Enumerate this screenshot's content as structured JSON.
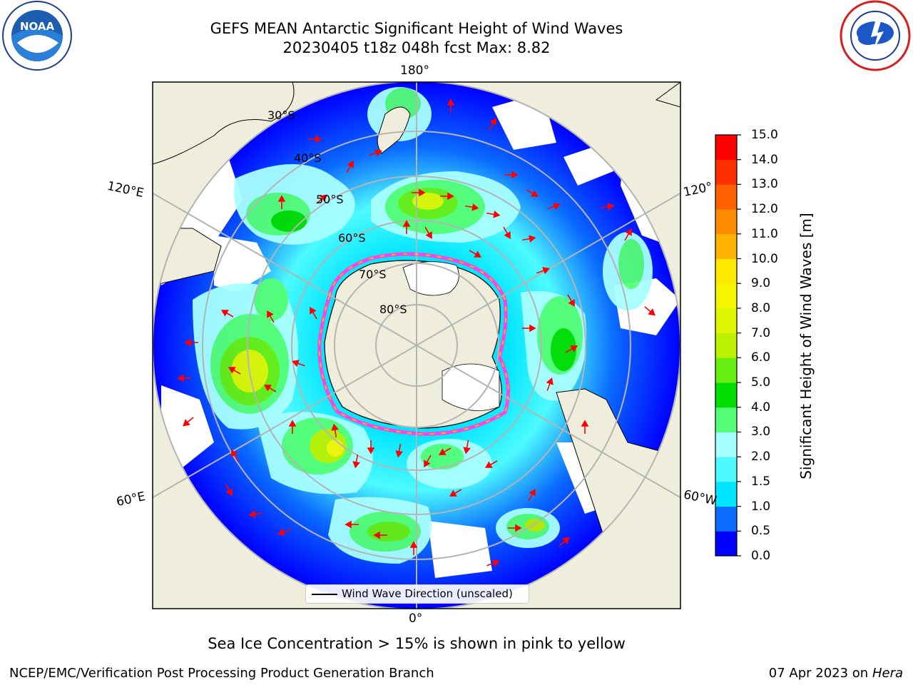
{
  "header": {
    "title_line1": "GEFS MEAN Antarctic Significant Height of Wind Waves",
    "title_line2": "20230405 t18z 048h fcst   Max: 8.82"
  },
  "logos": {
    "left": "NOAA",
    "left_ring_text": "NATIONAL OCEANIC AND ATMOSPHERIC ADMINISTRATION · U.S. DEPARTMENT OF COMMERCE",
    "right_ring_text": "NATIONAL WEATHER SERVICE"
  },
  "map": {
    "projection": "south-polar-stereographic",
    "lon_labels": {
      "top": "180°",
      "bottom": "0°",
      "left_upper": "120°E",
      "left_lower": "60°E",
      "right_upper": "120°",
      "right_lower": "60°W"
    },
    "lat_labels": [
      "30°S",
      "40°S",
      "50°S",
      "60°S",
      "70°S",
      "80°S"
    ],
    "legend": "Wind Wave Direction (unscaled)",
    "colors": {
      "land": "#efeddc",
      "ocean_calm": "#ffffff",
      "sea_ice_edge_pink": "#ff44dd",
      "sea_ice_edge_yellow": "#ffd000",
      "arrows": "#ff0000",
      "grid": "#b4b4b4"
    }
  },
  "colorbar": {
    "label": "Significant Height of Wind Waves [m]",
    "ticks": [
      "0.0",
      "0.5",
      "1.0",
      "1.5",
      "2.0",
      "3.0",
      "4.0",
      "5.0",
      "6.0",
      "7.0",
      "8.0",
      "9.0",
      "10.0",
      "11.0",
      "12.0",
      "13.0",
      "14.0",
      "15.0"
    ],
    "colors": [
      "#0000ff",
      "#0a6bff",
      "#00e5ff",
      "#4dfaff",
      "#a8ffff",
      "#55ff77",
      "#00dd00",
      "#66ee11",
      "#bbf000",
      "#ddf500",
      "#f5f500",
      "#ffe800",
      "#ffb300",
      "#ff8c00",
      "#ff6000",
      "#ff3000",
      "#ff0000"
    ]
  },
  "note": "Sea Ice Concentration > 15% is shown in pink to yellow",
  "footer": {
    "left": "NCEP/EMC/Verification Post Processing Product Generation Branch",
    "right_date": "07 Apr 2023 on",
    "right_machine": "Hera"
  }
}
